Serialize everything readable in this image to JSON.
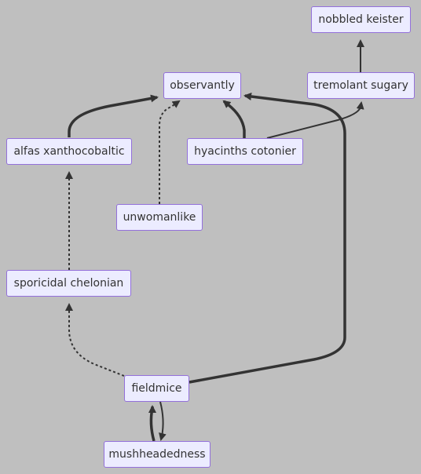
{
  "diagram": {
    "type": "flowchart",
    "nodes": [
      {
        "id": "nobbled",
        "label": "nobbled keister"
      },
      {
        "id": "observantly",
        "label": "observantly"
      },
      {
        "id": "tremolant",
        "label": "tremolant sugary"
      },
      {
        "id": "alfas",
        "label": "alfas xanthocobaltic"
      },
      {
        "id": "hyacinths",
        "label": "hyacinths cotonier"
      },
      {
        "id": "unwomanlike",
        "label": "unwomanlike"
      },
      {
        "id": "sporicidal",
        "label": "sporicidal chelonian"
      },
      {
        "id": "fieldmice",
        "label": "fieldmice"
      },
      {
        "id": "mushheadedness",
        "label": "mushheadedness"
      }
    ],
    "edges": [
      {
        "from": "tremolant",
        "to": "nobbled",
        "style": "solid"
      },
      {
        "from": "alfas",
        "to": "observantly",
        "style": "thick"
      },
      {
        "from": "unwomanlike",
        "to": "observantly",
        "style": "dotted"
      },
      {
        "from": "hyacinths",
        "to": "observantly",
        "style": "thick"
      },
      {
        "from": "hyacinths",
        "to": "tremolant",
        "style": "solid"
      },
      {
        "from": "fieldmice",
        "to": "observantly",
        "style": "thick"
      },
      {
        "from": "sporicidal",
        "to": "alfas",
        "style": "dotted"
      },
      {
        "from": "fieldmice",
        "to": "sporicidal",
        "style": "dotted"
      },
      {
        "from": "mushheadedness",
        "to": "fieldmice",
        "style": "thick"
      },
      {
        "from": "fieldmice",
        "to": "mushheadedness",
        "style": "solid"
      }
    ]
  }
}
